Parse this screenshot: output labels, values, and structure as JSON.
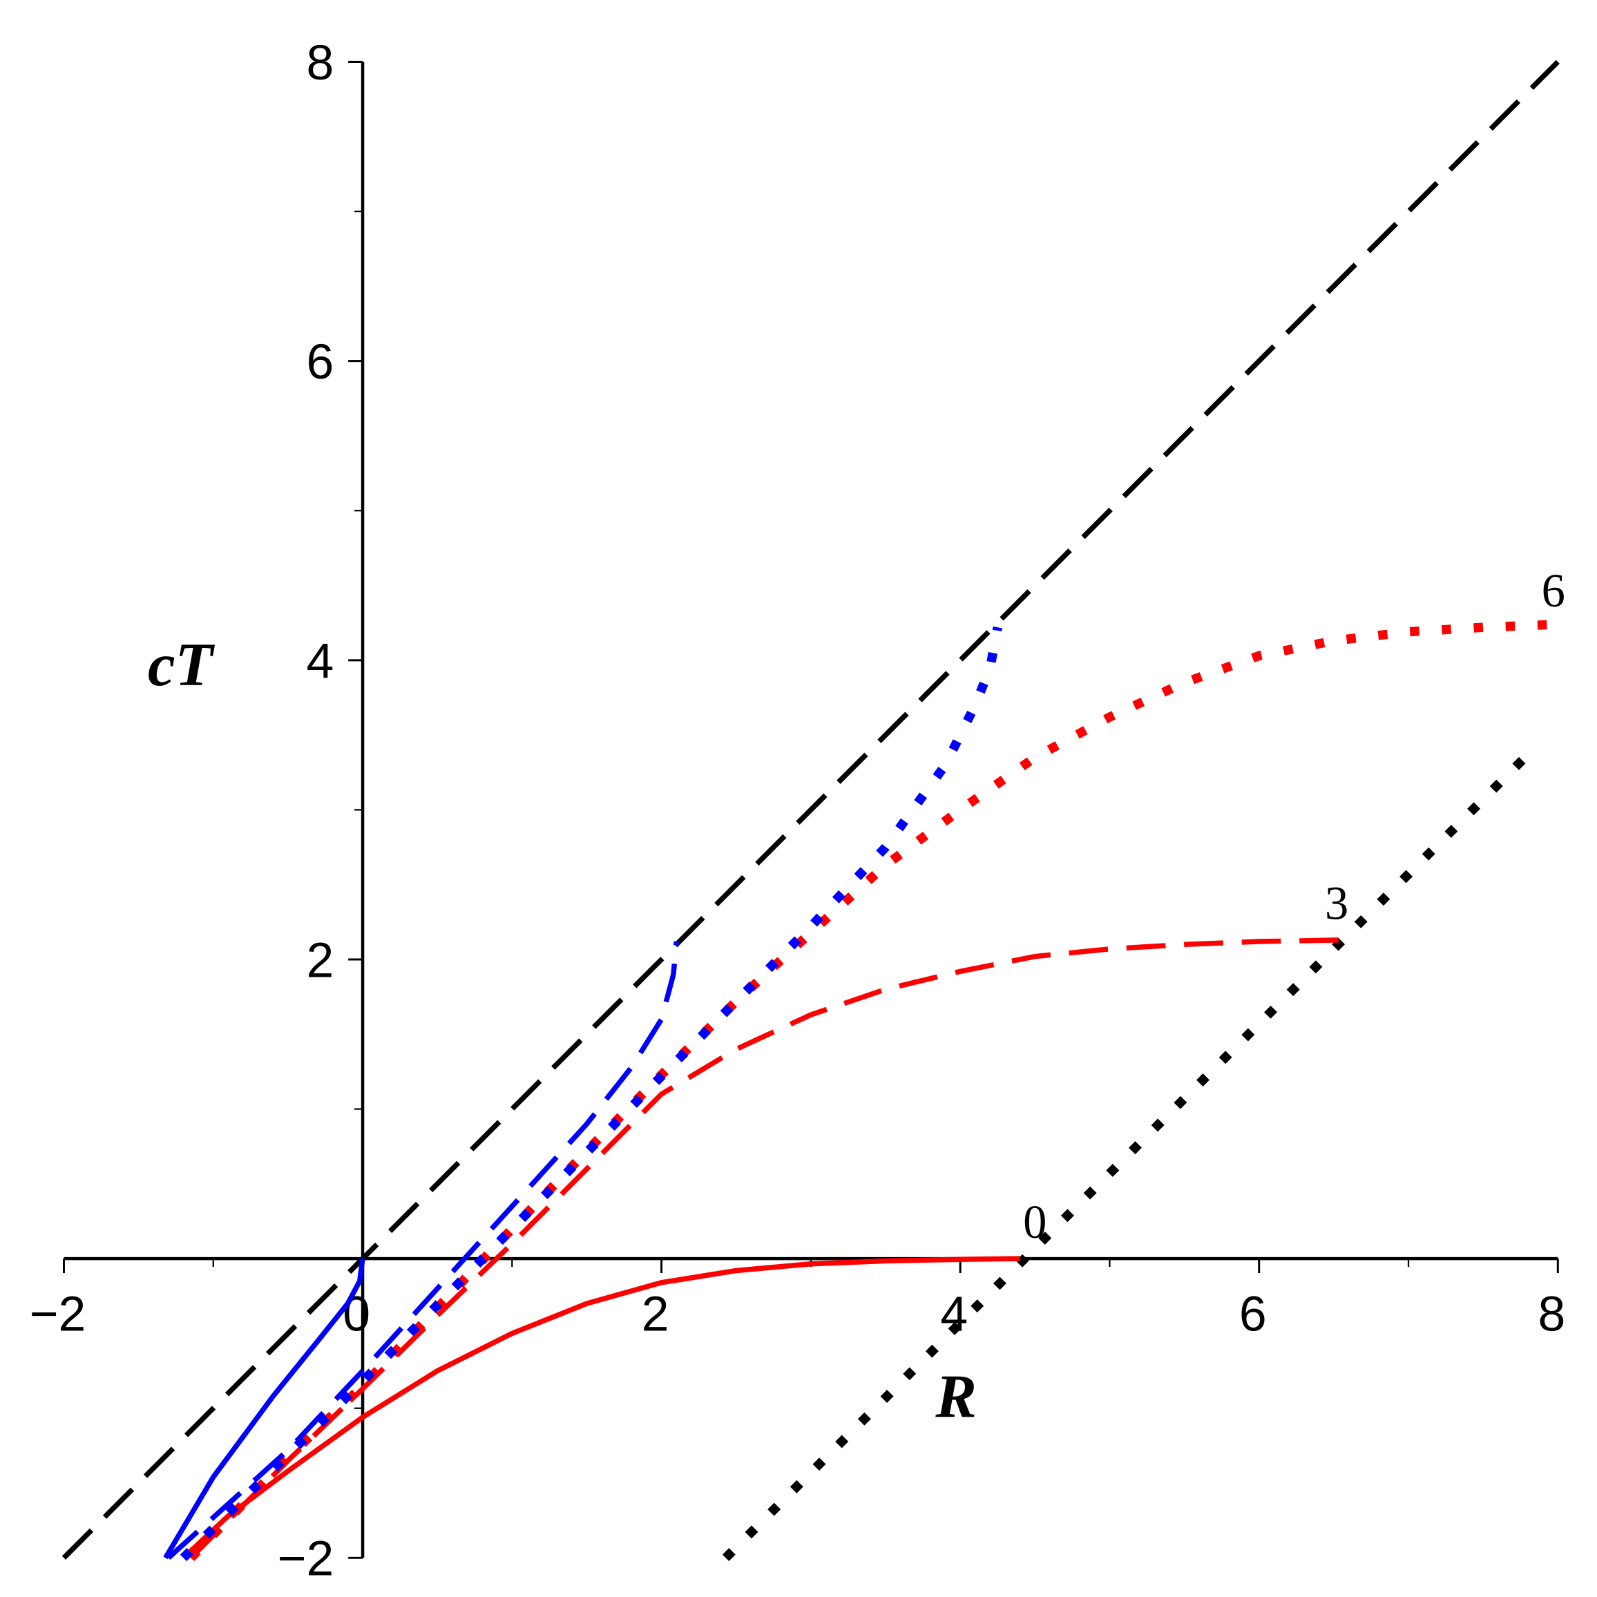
{
  "chart_data": {
    "type": "line",
    "xlabel": "R",
    "ylabel": "cT",
    "xlim": [
      -2,
      8
    ],
    "ylim": [
      -2,
      8
    ],
    "xticks": [
      {
        "value": -2,
        "label": "−2"
      },
      0,
      2,
      4,
      6,
      8
    ],
    "yticks": [
      {
        "value": -2,
        "label": "−2"
      },
      2,
      4,
      6,
      8
    ],
    "xminor": [
      -1,
      1,
      3,
      5,
      7
    ],
    "yminor": [
      -1,
      1,
      3,
      5,
      7
    ],
    "series": [
      {
        "color": "#000000",
        "style": "dash",
        "x": [
          -2,
          8
        ],
        "values": [
          -2,
          8
        ]
      },
      {
        "color": "#000000",
        "style": "dot",
        "x": [
          2.43,
          7.85
        ],
        "values": [
          -2,
          3.42
        ]
      },
      {
        "color": "#ff0000",
        "style": "solid",
        "x": [
          -1.2,
          -0.9,
          -0.5,
          0,
          0.5,
          1,
          1.5,
          2,
          2.5,
          3,
          3.5,
          4,
          4.4
        ],
        "values": [
          -2,
          -1.72,
          -1.42,
          -1.06,
          -0.75,
          -0.5,
          -0.3,
          -0.16,
          -0.08,
          -0.035,
          -0.015,
          -0.005,
          0
        ]
      },
      {
        "color": "#ff0000",
        "style": "dash",
        "x": [
          -1.15,
          -0.5,
          0,
          0.5,
          1,
          1.5,
          2,
          2.5,
          3,
          3.5,
          4,
          4.5,
          5,
          5.5,
          6,
          6.55
        ],
        "values": [
          -2,
          -1.35,
          -0.87,
          -0.38,
          0.1,
          0.6,
          1.1,
          1.4,
          1.63,
          1.8,
          1.92,
          2.02,
          2.07,
          2.1,
          2.12,
          2.13
        ]
      },
      {
        "color": "#ff0000",
        "style": "dot",
        "x": [
          -1.15,
          -0.5,
          0,
          0.5,
          1,
          1.5,
          2,
          2.5,
          3,
          3.5,
          4,
          4.5,
          5,
          5.5,
          6,
          6.5,
          7,
          7.5,
          8
        ],
        "values": [
          -2,
          -1.33,
          -0.85,
          -0.33,
          0.2,
          0.72,
          1.23,
          1.72,
          2.18,
          2.63,
          3.0,
          3.35,
          3.62,
          3.85,
          4.03,
          4.13,
          4.19,
          4.22,
          4.24
        ]
      },
      {
        "color": "#0000ff",
        "style": "solid",
        "x": [
          -1.32,
          -1,
          -0.6,
          -0.3,
          -0.1,
          -0.02,
          0
        ],
        "values": [
          -2,
          -1.46,
          -0.92,
          -0.55,
          -0.3,
          -0.15,
          0
        ]
      },
      {
        "color": "#0000ff",
        "style": "dash",
        "x": [
          -1.3,
          -0.5,
          0,
          0.5,
          1,
          1.5,
          1.8,
          2.0,
          2.08,
          2.1
        ],
        "values": [
          -2,
          -1.28,
          -0.75,
          -0.2,
          0.35,
          0.9,
          1.28,
          1.6,
          1.9,
          2.12
        ]
      },
      {
        "color": "#0000ff",
        "style": "dot",
        "x": [
          -1.2,
          0,
          1,
          2,
          3,
          3.5,
          3.9,
          4.1,
          4.2,
          4.25
        ],
        "values": [
          -2,
          -0.82,
          0.2,
          1.22,
          2.22,
          2.75,
          3.3,
          3.7,
          3.95,
          4.22
        ]
      }
    ],
    "annotations": [
      {
        "text": "0",
        "x": 4.5,
        "y": 0.25
      },
      {
        "text": "3",
        "x": 6.52,
        "y": 2.38
      },
      {
        "text": "6",
        "x": 7.97,
        "y": 4.47
      }
    ]
  }
}
